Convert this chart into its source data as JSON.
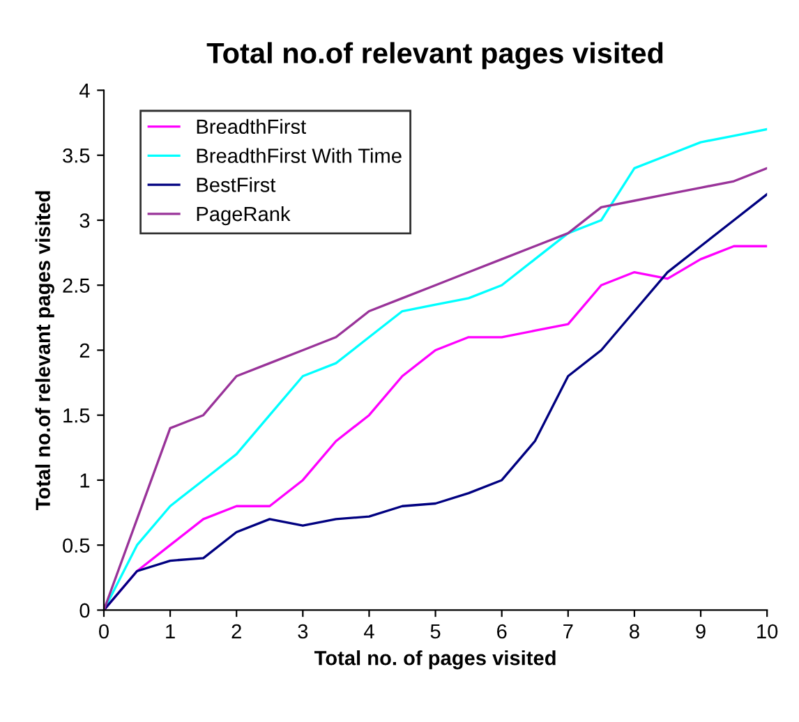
{
  "chart_data": {
    "type": "line",
    "title": "Total no.of relevant pages visited",
    "xlabel": "Total no. of pages visited",
    "ylabel": "Total no.of relevant pages visited",
    "x": [
      0,
      0.5,
      1,
      1.5,
      2,
      2.5,
      3,
      3.5,
      4,
      4.5,
      5,
      5.5,
      6,
      6.5,
      7,
      7.5,
      8,
      8.5,
      9,
      9.5,
      10
    ],
    "series": [
      {
        "name": "BreadthFirst",
        "color": "#ff00ff",
        "values": [
          0,
          0.3,
          0.5,
          0.7,
          0.8,
          0.8,
          1.0,
          1.3,
          1.5,
          1.8,
          2.0,
          2.1,
          2.1,
          2.15,
          2.2,
          2.5,
          2.6,
          2.55,
          2.7,
          2.8,
          2.8
        ]
      },
      {
        "name": "BreadthFirst With Time",
        "color": "#00ffff",
        "values": [
          0,
          0.5,
          0.8,
          1.0,
          1.2,
          1.5,
          1.8,
          1.9,
          2.1,
          2.3,
          2.35,
          2.4,
          2.5,
          2.7,
          2.9,
          3.0,
          3.4,
          3.5,
          3.6,
          3.65,
          3.7
        ]
      },
      {
        "name": "BestFirst",
        "color": "#000080",
        "values": [
          0,
          0.3,
          0.38,
          0.4,
          0.6,
          0.7,
          0.65,
          0.7,
          0.72,
          0.8,
          0.82,
          0.9,
          1.0,
          1.3,
          1.8,
          2.0,
          2.3,
          2.6,
          2.8,
          3.0,
          3.2
        ]
      },
      {
        "name": "PageRank",
        "color": "#993399",
        "values": [
          0,
          0.7,
          1.4,
          1.5,
          1.8,
          1.9,
          2.0,
          2.1,
          2.3,
          2.4,
          2.5,
          2.6,
          2.7,
          2.8,
          2.9,
          3.1,
          3.15,
          3.2,
          3.25,
          3.3,
          3.4
        ]
      }
    ],
    "xlim": [
      0,
      10
    ],
    "xticks": [
      0,
      1,
      2,
      3,
      4,
      5,
      6,
      7,
      8,
      9,
      10
    ],
    "ylim": [
      0,
      4
    ],
    "yticks": [
      0,
      0.5,
      1,
      1.5,
      2,
      2.5,
      3,
      3.5,
      4
    ],
    "grid": false,
    "legend": "top left",
    "marker": "none",
    "line_style": "solid"
  }
}
